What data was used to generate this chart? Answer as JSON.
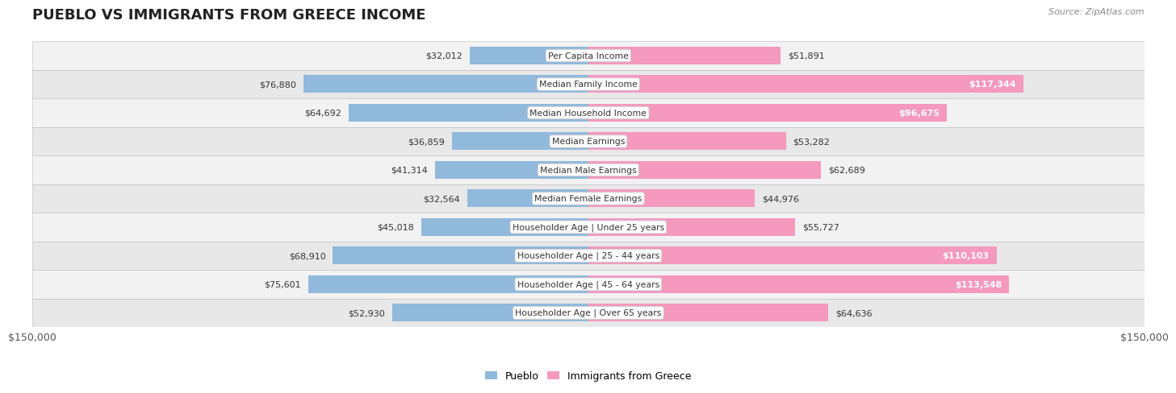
{
  "title": "PUEBLO VS IMMIGRANTS FROM GREECE INCOME",
  "source": "Source: ZipAtlas.com",
  "categories": [
    "Per Capita Income",
    "Median Family Income",
    "Median Household Income",
    "Median Earnings",
    "Median Male Earnings",
    "Median Female Earnings",
    "Householder Age | Under 25 years",
    "Householder Age | 25 - 44 years",
    "Householder Age | 45 - 64 years",
    "Householder Age | Over 65 years"
  ],
  "pueblo_values": [
    32012,
    76880,
    64692,
    36859,
    41314,
    32564,
    45018,
    68910,
    75601,
    52930
  ],
  "greece_values": [
    51891,
    117344,
    96675,
    53282,
    62689,
    44976,
    55727,
    110103,
    113548,
    64636
  ],
  "pueblo_labels": [
    "$32,012",
    "$76,880",
    "$64,692",
    "$36,859",
    "$41,314",
    "$32,564",
    "$45,018",
    "$68,910",
    "$75,601",
    "$52,930"
  ],
  "greece_labels": [
    "$51,891",
    "$117,344",
    "$96,675",
    "$53,282",
    "$62,689",
    "$44,976",
    "$55,727",
    "$110,103",
    "$113,548",
    "$64,636"
  ],
  "pueblo_color": "#91b9dc",
  "greece_color": "#f599be",
  "max_value": 150000,
  "axis_label": "$150,000",
  "legend_pueblo": "Pueblo",
  "legend_greece": "Immigrants from Greece",
  "row_colors": [
    "#f2f2f2",
    "#e8e8e8"
  ]
}
